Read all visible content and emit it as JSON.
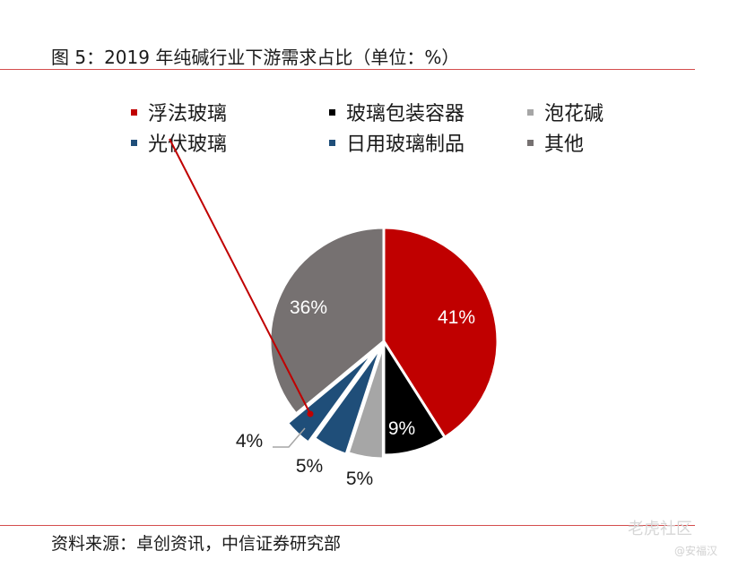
{
  "title": "图 5：2019 年纯碱行业下游需求占比（单位：%）",
  "source": "资料来源：卓创资讯，中信证券研究部",
  "watermark": {
    "main": "老虎社区",
    "sub": "@安福汉"
  },
  "colors": {
    "rule": "#d44d4d"
  },
  "chart_data": {
    "type": "pie",
    "title": "图 5：2019 年纯碱行业下游需求占比（单位：%）",
    "slices": [
      {
        "name": "浮法玻璃",
        "value": 41,
        "label": "41%",
        "color": "#c00000"
      },
      {
        "name": "玻璃包装容器",
        "value": 9,
        "label": "9%",
        "color": "#000000"
      },
      {
        "name": "泡花碱",
        "value": 5,
        "label": "5%",
        "color": "#a6a6a6"
      },
      {
        "name": "日用玻璃制品",
        "value": 5,
        "label": "5%",
        "color": "#1f4e79"
      },
      {
        "name": "光伏玻璃",
        "value": 4,
        "label": "4%",
        "color": "#1f4e79"
      },
      {
        "name": "其他",
        "value": 36,
        "label": "36%",
        "color": "#767171"
      }
    ],
    "legend": [
      {
        "name": "浮法玻璃",
        "color": "#c00000"
      },
      {
        "name": "玻璃包装容器",
        "color": "#000000"
      },
      {
        "name": "泡花碱",
        "color": "#a6a6a6"
      },
      {
        "name": "光伏玻璃",
        "color": "#1f4e79"
      },
      {
        "name": "日用玻璃制品",
        "color": "#1f4e79"
      },
      {
        "name": "其他",
        "color": "#767171"
      }
    ],
    "legend_position": "top",
    "annotation": {
      "from_legend": "光伏玻璃",
      "to_slice": "光伏玻璃",
      "color": "#c00000"
    }
  }
}
